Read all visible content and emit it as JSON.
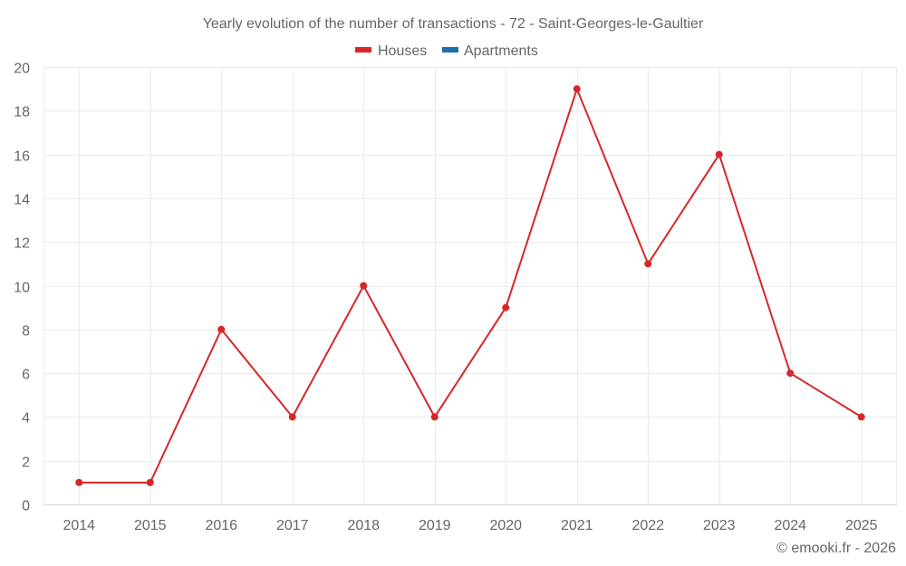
{
  "chart_data": {
    "type": "line",
    "title": "Yearly evolution of the number of transactions - 72 - Saint-Georges-le-Gaultier",
    "xlabel": "",
    "ylabel": "",
    "categories": [
      "2014",
      "2015",
      "2016",
      "2017",
      "2018",
      "2019",
      "2020",
      "2021",
      "2022",
      "2023",
      "2024",
      "2025"
    ],
    "series": [
      {
        "name": "Houses",
        "color": "#d62728",
        "values": [
          1,
          1,
          8,
          4,
          10,
          4,
          9,
          19,
          11,
          16,
          6,
          4
        ]
      },
      {
        "name": "Apartments",
        "color": "#1f6fa6",
        "values": []
      }
    ],
    "ylim": [
      0,
      20
    ],
    "yticks": [
      0,
      2,
      4,
      6,
      8,
      10,
      12,
      14,
      16,
      18,
      20
    ],
    "grid": true,
    "legend_position": "top"
  },
  "legend": {
    "items": [
      {
        "label": "Houses",
        "color": "#d62728"
      },
      {
        "label": "Apartments",
        "color": "#1f6fa6"
      }
    ]
  },
  "credit": "© emooki.fr - 2026"
}
